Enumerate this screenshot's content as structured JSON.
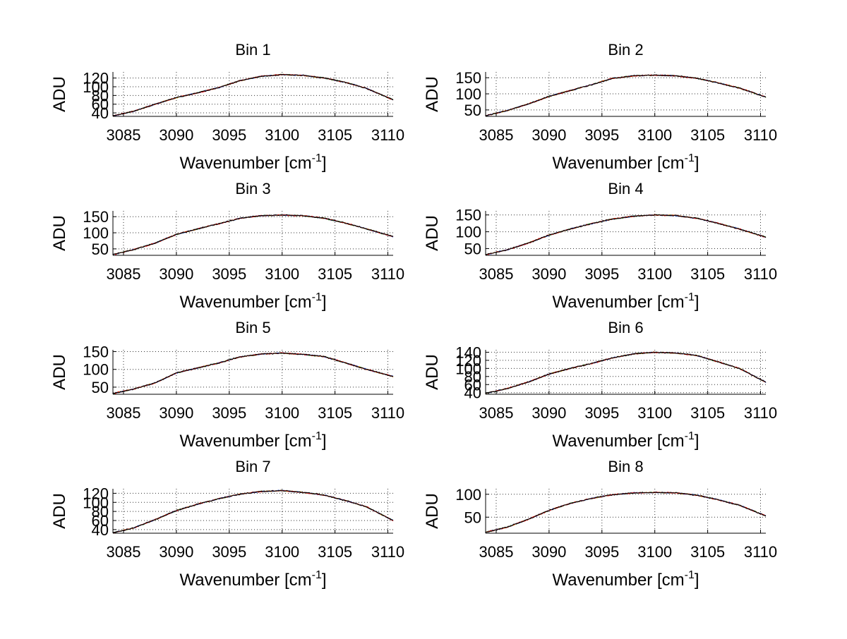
{
  "figure": {
    "background": "#ffffff"
  },
  "style": {
    "line_colors": [
      "#d4a600",
      "#1a7a1a",
      "#1f3fb0",
      "#d40000",
      "#000000"
    ],
    "grid_color": "#000000"
  },
  "chart_data": [
    {
      "type": "line",
      "title": "Bin 1",
      "xlabel": "Wavenumber [cm",
      "xlabel_sup": "-1",
      "xlabel_close": "]",
      "ylabel": "ADU",
      "xlim": [
        3084,
        3110.5
      ],
      "ylim": [
        32,
        134
      ],
      "xticks": [
        3085,
        3090,
        3095,
        3100,
        3105,
        3110
      ],
      "yticks": [
        40,
        60,
        80,
        100,
        120
      ],
      "grid": true,
      "x": [
        3084,
        3086,
        3088,
        3090,
        3092,
        3094,
        3096,
        3098,
        3100,
        3102,
        3104,
        3106,
        3108,
        3110.5
      ],
      "y": [
        33,
        44,
        60,
        75,
        86,
        98,
        114,
        124,
        128,
        126,
        120,
        110,
        96,
        70
      ]
    },
    {
      "type": "line",
      "title": "Bin 2",
      "xlabel": "Wavenumber [cm",
      "xlabel_sup": "-1",
      "xlabel_close": "]",
      "ylabel": "ADU",
      "xlim": [
        3084,
        3110.5
      ],
      "ylim": [
        30,
        168
      ],
      "xticks": [
        3085,
        3090,
        3095,
        3100,
        3105,
        3110
      ],
      "yticks": [
        50,
        100,
        150
      ],
      "grid": true,
      "x": [
        3084,
        3086,
        3088,
        3090,
        3092,
        3094,
        3096,
        3098,
        3100,
        3102,
        3104,
        3106,
        3108,
        3110.5
      ],
      "y": [
        32,
        48,
        68,
        92,
        110,
        128,
        148,
        156,
        158,
        156,
        148,
        134,
        118,
        90
      ]
    },
    {
      "type": "line",
      "title": "Bin 3",
      "xlabel": "Wavenumber [cm",
      "xlabel_sup": "-1",
      "xlabel_close": "]",
      "ylabel": "ADU",
      "xlim": [
        3084,
        3110.5
      ],
      "ylim": [
        30,
        168
      ],
      "xticks": [
        3085,
        3090,
        3095,
        3100,
        3105,
        3110
      ],
      "yticks": [
        50,
        100,
        150
      ],
      "grid": true,
      "x": [
        3084,
        3086,
        3088,
        3090,
        3092,
        3094,
        3096,
        3098,
        3100,
        3102,
        3104,
        3106,
        3108,
        3110.5
      ],
      "y": [
        32,
        48,
        68,
        95,
        112,
        128,
        145,
        153,
        155,
        153,
        145,
        130,
        112,
        88
      ]
    },
    {
      "type": "line",
      "title": "Bin 4",
      "xlabel": "Wavenumber [cm",
      "xlabel_sup": "-1",
      "xlabel_close": "]",
      "ylabel": "ADU",
      "xlim": [
        3084,
        3110.5
      ],
      "ylim": [
        30,
        162
      ],
      "xticks": [
        3085,
        3090,
        3095,
        3100,
        3105,
        3110
      ],
      "yticks": [
        50,
        100,
        150
      ],
      "grid": true,
      "x": [
        3084,
        3086,
        3088,
        3090,
        3092,
        3094,
        3096,
        3098,
        3100,
        3102,
        3104,
        3106,
        3108,
        3110.5
      ],
      "y": [
        32,
        46,
        66,
        90,
        108,
        124,
        138,
        146,
        150,
        148,
        140,
        125,
        108,
        84
      ]
    },
    {
      "type": "line",
      "title": "Bin 5",
      "xlabel": "Wavenumber [cm",
      "xlabel_sup": "-1",
      "xlabel_close": "]",
      "ylabel": "ADU",
      "xlim": [
        3084,
        3110.5
      ],
      "ylim": [
        30,
        155
      ],
      "xticks": [
        3085,
        3090,
        3095,
        3100,
        3105,
        3110
      ],
      "yticks": [
        50,
        100,
        150
      ],
      "grid": true,
      "x": [
        3084,
        3086,
        3088,
        3090,
        3092,
        3094,
        3096,
        3098,
        3100,
        3102,
        3104,
        3106,
        3108,
        3110.5
      ],
      "y": [
        32,
        45,
        62,
        90,
        104,
        118,
        135,
        143,
        146,
        142,
        136,
        118,
        100,
        80
      ]
    },
    {
      "type": "line",
      "title": "Bin 6",
      "xlabel": "Wavenumber [cm",
      "xlabel_sup": "-1",
      "xlabel_close": "]",
      "ylabel": "ADU",
      "xlim": [
        3084,
        3110.5
      ],
      "ylim": [
        36,
        146
      ],
      "xticks": [
        3085,
        3090,
        3095,
        3100,
        3105,
        3110
      ],
      "yticks": [
        40,
        60,
        80,
        100,
        120,
        140
      ],
      "grid": true,
      "x": [
        3084,
        3086,
        3088,
        3090,
        3092,
        3094,
        3096,
        3098,
        3100,
        3102,
        3104,
        3106,
        3108,
        3110.5
      ],
      "y": [
        38,
        50,
        66,
        86,
        100,
        112,
        126,
        136,
        140,
        138,
        132,
        116,
        100,
        66
      ]
    },
    {
      "type": "line",
      "title": "Bin 7",
      "xlabel": "Wavenumber [cm",
      "xlabel_sup": "-1",
      "xlabel_close": "]",
      "ylabel": "ADU",
      "xlim": [
        3084,
        3110.5
      ],
      "ylim": [
        32,
        130
      ],
      "xticks": [
        3085,
        3090,
        3095,
        3100,
        3105,
        3110
      ],
      "yticks": [
        40,
        60,
        80,
        100,
        120
      ],
      "grid": true,
      "x": [
        3084,
        3086,
        3088,
        3090,
        3092,
        3094,
        3096,
        3098,
        3100,
        3102,
        3104,
        3106,
        3108,
        3110.5
      ],
      "y": [
        33,
        44,
        62,
        82,
        96,
        108,
        118,
        124,
        126,
        122,
        116,
        104,
        90,
        60
      ]
    },
    {
      "type": "line",
      "title": "Bin 8",
      "xlabel": "Wavenumber [cm",
      "xlabel_sup": "-1",
      "xlabel_close": "]",
      "ylabel": "ADU",
      "xlim": [
        3084,
        3110.5
      ],
      "ylim": [
        15,
        112
      ],
      "xticks": [
        3085,
        3090,
        3095,
        3100,
        3105,
        3110
      ],
      "yticks": [
        50,
        100
      ],
      "grid": true,
      "x": [
        3084,
        3086,
        3088,
        3090,
        3092,
        3094,
        3096,
        3098,
        3100,
        3102,
        3104,
        3106,
        3108,
        3110.5
      ],
      "y": [
        17,
        28,
        45,
        65,
        80,
        91,
        99,
        103,
        104,
        103,
        98,
        88,
        76,
        53
      ]
    }
  ]
}
